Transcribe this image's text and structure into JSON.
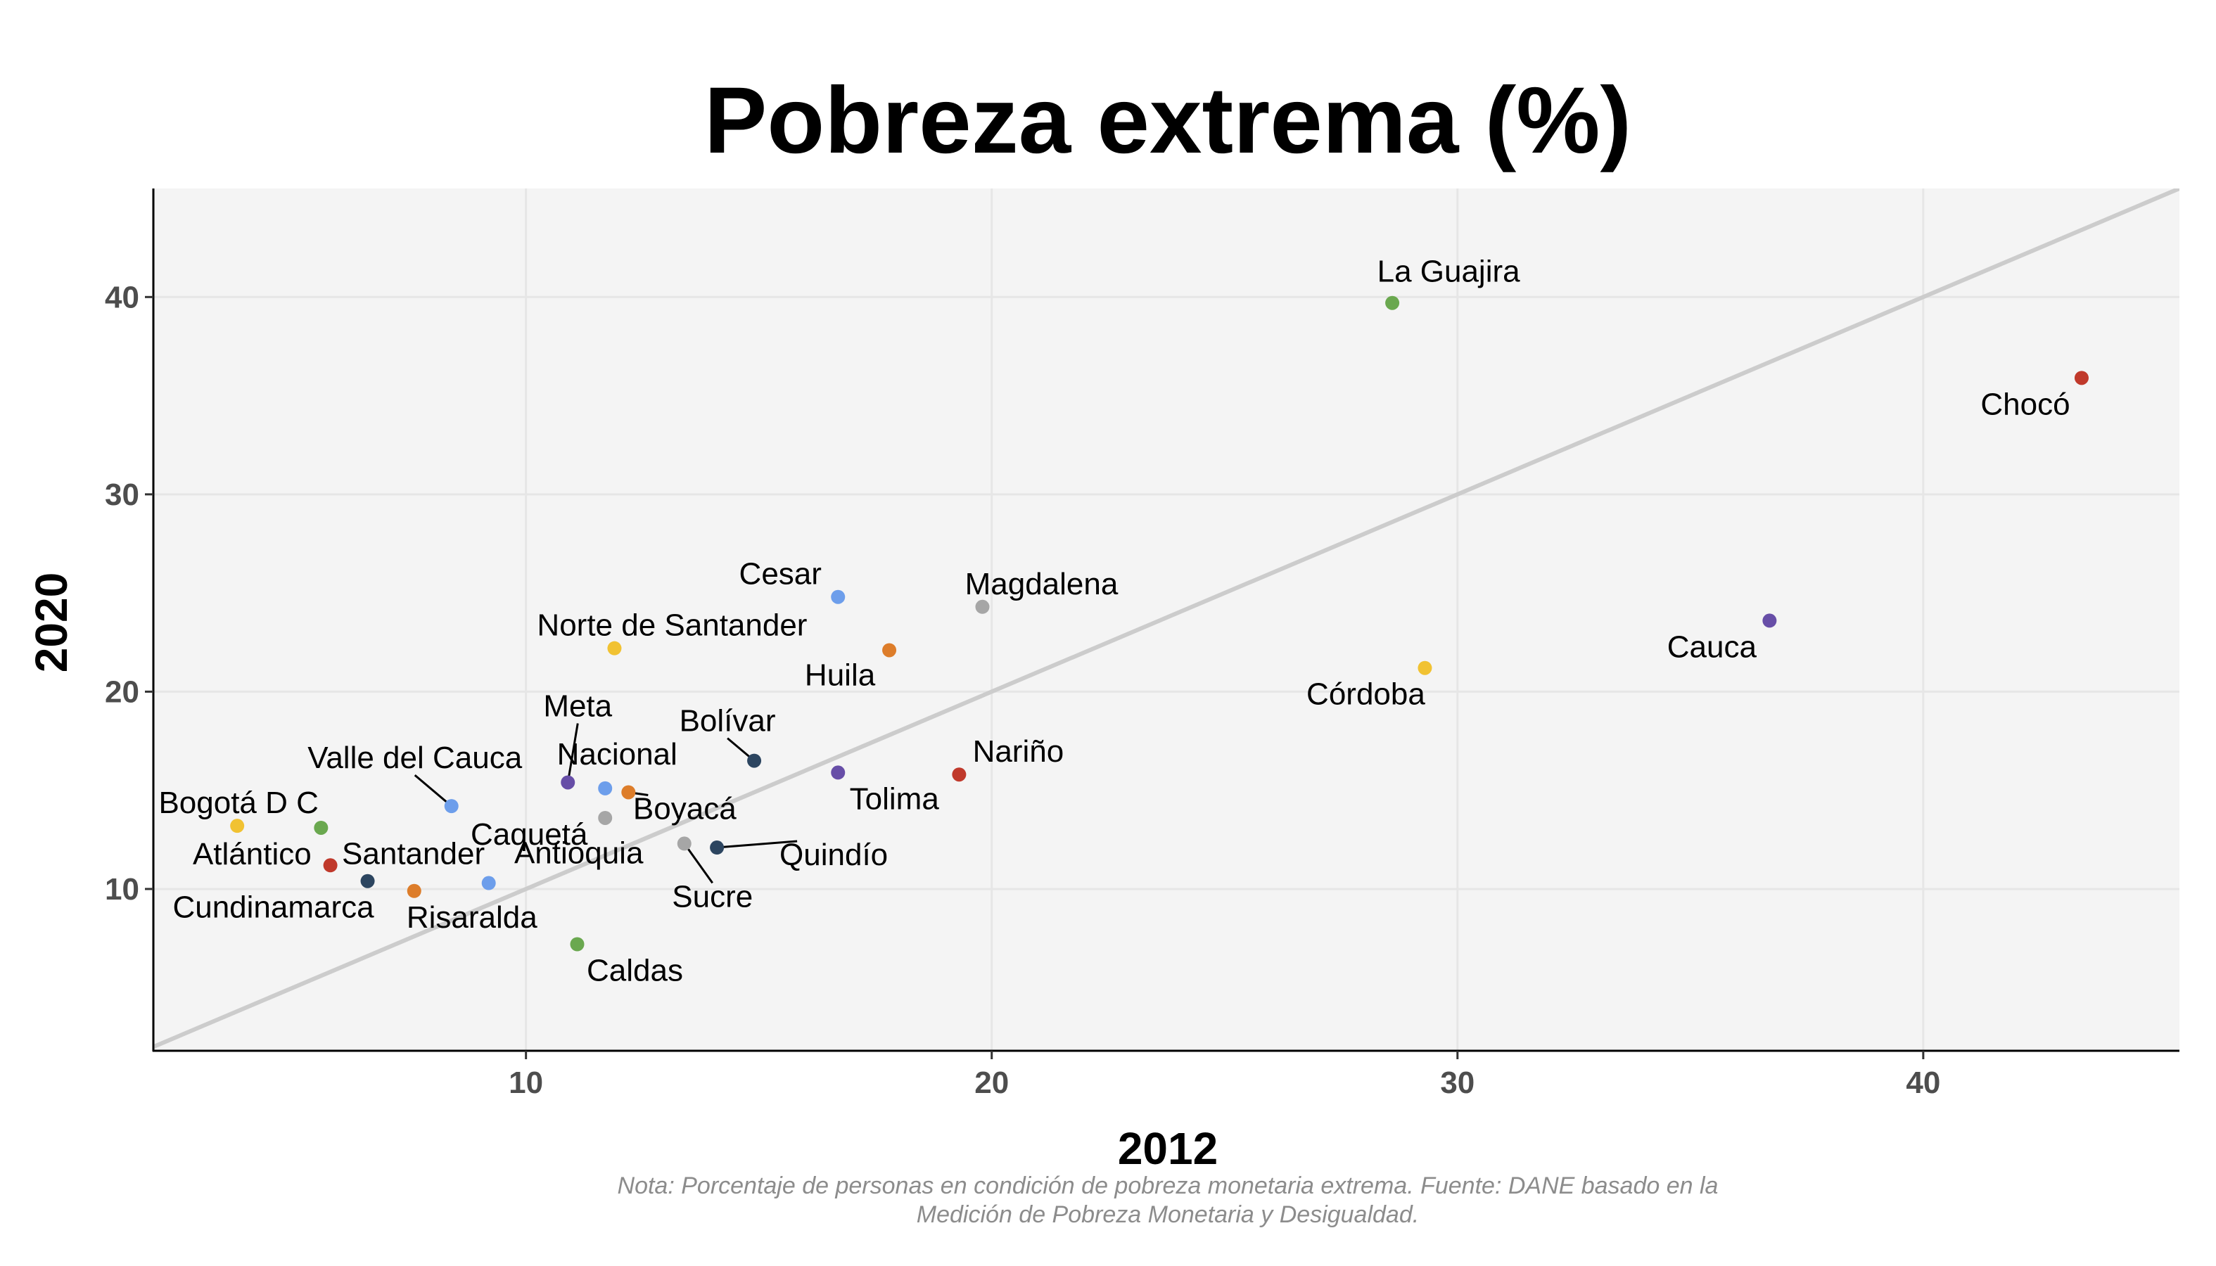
{
  "chart_data": {
    "type": "scatter",
    "title": "Pobreza extrema (%)",
    "xlabel": "2012",
    "ylabel": "2020",
    "xlim": [
      2,
      45.5
    ],
    "ylim": [
      1.8,
      45.5
    ],
    "xticks": [
      10,
      20,
      30,
      40
    ],
    "yticks": [
      10,
      20,
      30,
      40
    ],
    "grid": true,
    "reference_line": "y = x",
    "note": [
      "Nota: Porcentaje de personas en condición de pobreza monetaria extrema. Fuente: DANE basado en la",
      "Medición de Pobreza Monetaria y Desigualdad."
    ],
    "colors": {
      "panel": "#f4f4f4",
      "grid": "#e6e6e6",
      "reference_line": "#cccccc",
      "green": "#6aa84f",
      "red": "#c0392b",
      "blue": "#6d9eeb",
      "purple": "#674ea7",
      "orange": "#dd7d2a",
      "yellow": "#f1c232",
      "gray": "#a6a6a6",
      "navy": "#2c4560"
    },
    "points": [
      {
        "label": "La Guajira",
        "x": 28.6,
        "y": 39.7,
        "color": "green"
      },
      {
        "label": "Chocó",
        "x": 43.4,
        "y": 35.9,
        "color": "red"
      },
      {
        "label": "Cauca",
        "x": 36.7,
        "y": 23.6,
        "color": "purple"
      },
      {
        "label": "Córdoba",
        "x": 29.3,
        "y": 21.2,
        "color": "yellow"
      },
      {
        "label": "Cesar",
        "x": 16.7,
        "y": 24.8,
        "color": "blue"
      },
      {
        "label": "Magdalena",
        "x": 19.8,
        "y": 24.3,
        "color": "gray"
      },
      {
        "label": "Huila",
        "x": 17.8,
        "y": 22.1,
        "color": "orange"
      },
      {
        "label": "Norte de Santander",
        "x": 11.9,
        "y": 22.2,
        "color": "yellow"
      },
      {
        "label": "Bolívar",
        "x": 14.9,
        "y": 16.5,
        "color": "navy"
      },
      {
        "label": "Tolima",
        "x": 16.7,
        "y": 15.9,
        "color": "purple"
      },
      {
        "label": "Nariño",
        "x": 19.3,
        "y": 15.8,
        "color": "red"
      },
      {
        "label": "Meta",
        "x": 10.9,
        "y": 15.4,
        "color": "purple"
      },
      {
        "label": "Nacional",
        "x": 11.7,
        "y": 15.1,
        "color": "blue"
      },
      {
        "label": "Boyacá",
        "x": 12.2,
        "y": 14.9,
        "color": "orange"
      },
      {
        "label": "Caquetá",
        "x": 11.7,
        "y": 13.6,
        "color": "gray"
      },
      {
        "label": "Valle del Cauca",
        "x": 8.4,
        "y": 14.2,
        "color": "blue"
      },
      {
        "label": "Bogotá D C",
        "x": 3.8,
        "y": 13.2,
        "color": "yellow"
      },
      {
        "label": "Atlántico",
        "x": 5.6,
        "y": 13.1,
        "color": "green"
      },
      {
        "label": "Santander",
        "x": 5.8,
        "y": 11.2,
        "color": "red"
      },
      {
        "label": "Cundinamarca",
        "x": 6.6,
        "y": 10.4,
        "color": "navy"
      },
      {
        "label": "Risaralda",
        "x": 7.6,
        "y": 9.9,
        "color": "orange"
      },
      {
        "label": "Antioquia",
        "x": 9.2,
        "y": 10.3,
        "color": "blue"
      },
      {
        "label": "Sucre",
        "x": 13.4,
        "y": 12.3,
        "color": "gray"
      },
      {
        "label": "Quindío",
        "x": 14.1,
        "y": 12.1,
        "color": "navy"
      },
      {
        "label": "Caldas",
        "x": 11.1,
        "y": 7.2,
        "color": "green"
      }
    ]
  }
}
